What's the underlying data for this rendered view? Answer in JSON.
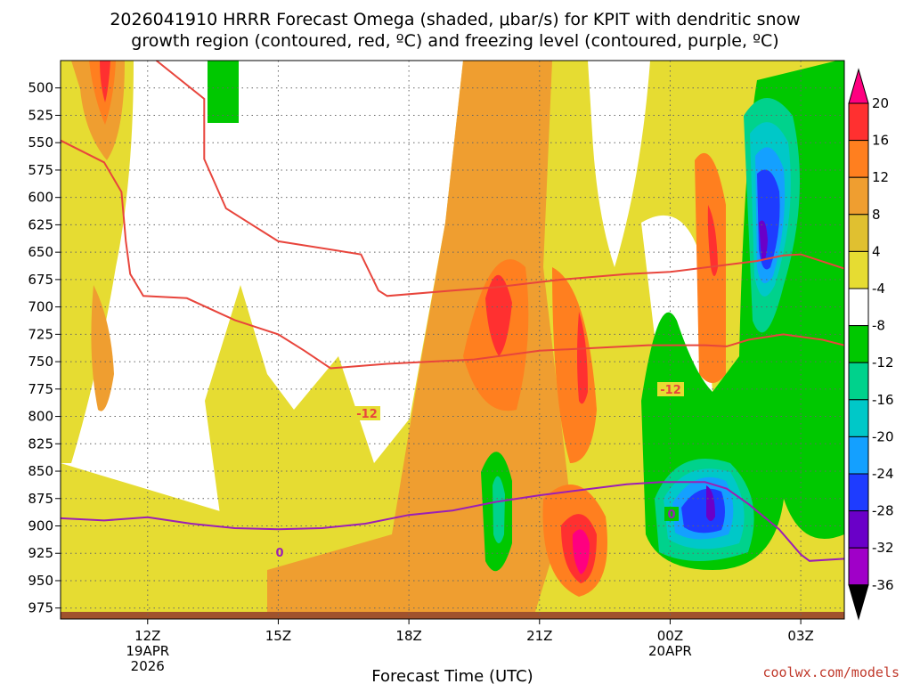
{
  "title_line1": "2026041910 HRRR Forecast Omega (shaded, μbar/s) for KPIT with dendritic snow",
  "title_line2": "growth region (contoured, red, ºC) and freezing level (contoured, purple, ºC)",
  "xlabel": "Forecast Time (UTC)",
  "credit": "coolwx.com/models",
  "chart_data": {
    "type": "heatmap",
    "x_range_hours": [
      -2.0,
      16.0
    ],
    "y_range_hpa": [
      475,
      985
    ],
    "y_ticks": [
      500,
      525,
      550,
      575,
      600,
      625,
      650,
      675,
      700,
      725,
      750,
      775,
      800,
      825,
      850,
      875,
      900,
      925,
      950,
      975
    ],
    "x_ticks": [
      {
        "hour": 0,
        "label": "12Z",
        "sub1": "19APR",
        "sub2": "2026"
      },
      {
        "hour": 3,
        "label": "15Z",
        "sub1": "",
        "sub2": ""
      },
      {
        "hour": 6,
        "label": "18Z",
        "sub1": "",
        "sub2": ""
      },
      {
        "hour": 9,
        "label": "21Z",
        "sub1": "",
        "sub2": ""
      },
      {
        "hour": 12,
        "label": "00Z",
        "sub1": "20APR",
        "sub2": ""
      },
      {
        "hour": 15,
        "label": "03Z",
        "sub1": "",
        "sub2": ""
      }
    ],
    "colorbar": {
      "labels": [
        "20",
        "16",
        "12",
        "8",
        "4",
        "-4",
        "-8",
        "-12",
        "-16",
        "-20",
        "-24",
        "-28",
        "-32",
        "-36"
      ],
      "colors": [
        "#ff0080",
        "#ff3030",
        "#ff7f1f",
        "#ef9e30",
        "#e0c030",
        "#e6dc32",
        "#ffffff",
        "#00c800",
        "#00d28c",
        "#00c8c8",
        "#14a0ff",
        "#1e3cff",
        "#6a00c8",
        "#a000c8",
        "#b0b0b0"
      ]
    },
    "contours": [
      {
        "name": "-12",
        "color": "#e8453c",
        "points": [
          [
            -2.0,
            548
          ],
          [
            -1.0,
            568
          ],
          [
            -0.6,
            595
          ],
          [
            -0.5,
            640
          ],
          [
            -0.4,
            670
          ],
          [
            -0.1,
            690
          ],
          [
            0.9,
            692
          ],
          [
            2.0,
            712
          ],
          [
            3.0,
            725
          ],
          [
            3.6,
            740
          ],
          [
            4.2,
            756
          ],
          [
            5.5,
            752
          ],
          [
            7.5,
            748
          ],
          [
            9.0,
            740
          ],
          [
            11.5,
            735
          ],
          [
            12.8,
            735
          ],
          [
            13.3,
            736
          ],
          [
            13.8,
            730
          ],
          [
            14.6,
            725
          ],
          [
            15.5,
            730
          ],
          [
            16.0,
            735
          ]
        ]
      },
      {
        "name": "-12",
        "color": "#e8453c",
        "points": [
          [
            0.2,
            475
          ],
          [
            1.3,
            510
          ],
          [
            1.3,
            565
          ],
          [
            1.8,
            610
          ],
          [
            3.0,
            640
          ],
          [
            4.9,
            652
          ],
          [
            5.3,
            685
          ],
          [
            5.5,
            690
          ],
          [
            7.0,
            685
          ],
          [
            8.0,
            682
          ],
          [
            9.5,
            675
          ],
          [
            11.0,
            670
          ],
          [
            12.0,
            668
          ],
          [
            14.0,
            658
          ],
          [
            14.6,
            653
          ],
          [
            15.0,
            652
          ],
          [
            16.0,
            665
          ]
        ]
      },
      {
        "name": "0",
        "color": "#9b1fb5",
        "points": [
          [
            -2.0,
            893
          ],
          [
            -1.0,
            895
          ],
          [
            0.0,
            892
          ],
          [
            1.0,
            898
          ],
          [
            2.0,
            902
          ],
          [
            3.0,
            903
          ],
          [
            4.0,
            902
          ],
          [
            5.0,
            898
          ],
          [
            6.0,
            890
          ],
          [
            7.0,
            886
          ],
          [
            8.0,
            878
          ],
          [
            9.0,
            872
          ],
          [
            10.0,
            867
          ],
          [
            11.0,
            862
          ],
          [
            11.8,
            860
          ],
          [
            12.8,
            860
          ],
          [
            13.3,
            866
          ],
          [
            13.8,
            880
          ],
          [
            14.5,
            903
          ],
          [
            15.0,
            926
          ],
          [
            15.2,
            932
          ],
          [
            16.0,
            930
          ]
        ]
      }
    ]
  }
}
